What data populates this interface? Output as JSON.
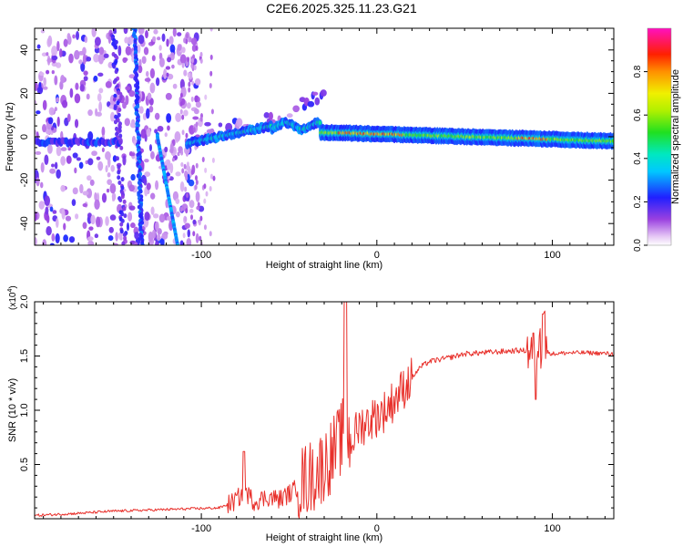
{
  "title": "C2E6.2025.325.11.23.G21",
  "colors": {
    "snr_line": "#e8302b",
    "axis": "#000000",
    "background": "#ffffff",
    "spectro_bg": "#ffffff"
  },
  "chart_data": [
    {
      "type": "heatmap",
      "name": "spectrogram",
      "xlabel": "Height of straight line (km)",
      "ylabel": "Frequency (Hz)",
      "xlim": [
        -195,
        135
      ],
      "ylim": [
        -50,
        50
      ],
      "xticks": [
        -100,
        0,
        100
      ],
      "xtick_labels": [
        "-100",
        "0",
        "100"
      ],
      "yticks": [
        -40,
        -20,
        0,
        20,
        40
      ],
      "ytick_labels": [
        "-40",
        "-20",
        "0",
        "20",
        "40"
      ],
      "colorbar": {
        "label": "Normalized spectral amplitude",
        "range": [
          0,
          1
        ],
        "ticks": [
          0.0,
          0.2,
          0.4,
          0.6,
          0.8
        ],
        "tick_labels": [
          "0.0",
          "0.2",
          "0.4",
          "0.6",
          "0.8"
        ],
        "colormap": "rainbow (white-purple-blue-cyan-green-yellow-red-magenta)"
      },
      "features": [
        {
          "name": "near-zero band",
          "x": [
            -195,
            -145
          ],
          "freq": [
            -2,
            -3
          ],
          "amplitude": 0.25
        },
        {
          "name": "rising chirp",
          "x": [
            -105,
            -60,
            -35
          ],
          "freq": [
            -3,
            5,
            5
          ],
          "amplitude": 0.45
        },
        {
          "name": "steady tone",
          "x": [
            -30,
            135
          ],
          "freq": [
            2,
            -2
          ],
          "amplitude": 0.75
        },
        {
          "name": "streak",
          "x": [
            -125,
            -112
          ],
          "freq": [
            0,
            -50
          ],
          "amplitude": 0.25
        }
      ]
    },
    {
      "type": "line",
      "name": "snr",
      "xlabel": "Height of straight line (km)",
      "ylabel": "SNR (10 * v/v)",
      "y_multiplier": "(x10",
      "y_multiplier_exp": "4",
      "y_multiplier_close": ")",
      "xlim": [
        -195,
        135
      ],
      "ylim": [
        0,
        2.0
      ],
      "xticks": [
        -100,
        0,
        100
      ],
      "xtick_labels": [
        "-100",
        "0",
        "100"
      ],
      "yticks": [
        0.5,
        1.0,
        1.5,
        2.0
      ],
      "ytick_labels": [
        "0.5",
        "1.0",
        "1.5",
        "2.0"
      ],
      "series": [
        {
          "name": "SNR",
          "color": "#e8302b",
          "x": [
            -195,
            -170,
            -150,
            -130,
            -110,
            -90,
            -82,
            -75,
            -70,
            -62,
            -55,
            -48,
            -42,
            -36,
            -30,
            -25,
            -20,
            -18,
            -15,
            -10,
            -5,
            0,
            5,
            10,
            15,
            20,
            25,
            30,
            40,
            50,
            60,
            70,
            80,
            88,
            92,
            95,
            100,
            110,
            120,
            135
          ],
          "values": [
            0.03,
            0.05,
            0.07,
            0.08,
            0.09,
            0.1,
            0.15,
            0.25,
            0.16,
            0.2,
            0.18,
            0.25,
            0.35,
            0.4,
            0.5,
            0.6,
            0.75,
            0.8,
            0.7,
            0.85,
            0.9,
            0.95,
            1.0,
            1.1,
            1.2,
            1.3,
            1.4,
            1.45,
            1.48,
            1.52,
            1.53,
            1.54,
            1.55,
            1.55,
            1.6,
            1.55,
            1.52,
            1.53,
            1.53,
            1.52
          ]
        }
      ]
    }
  ]
}
